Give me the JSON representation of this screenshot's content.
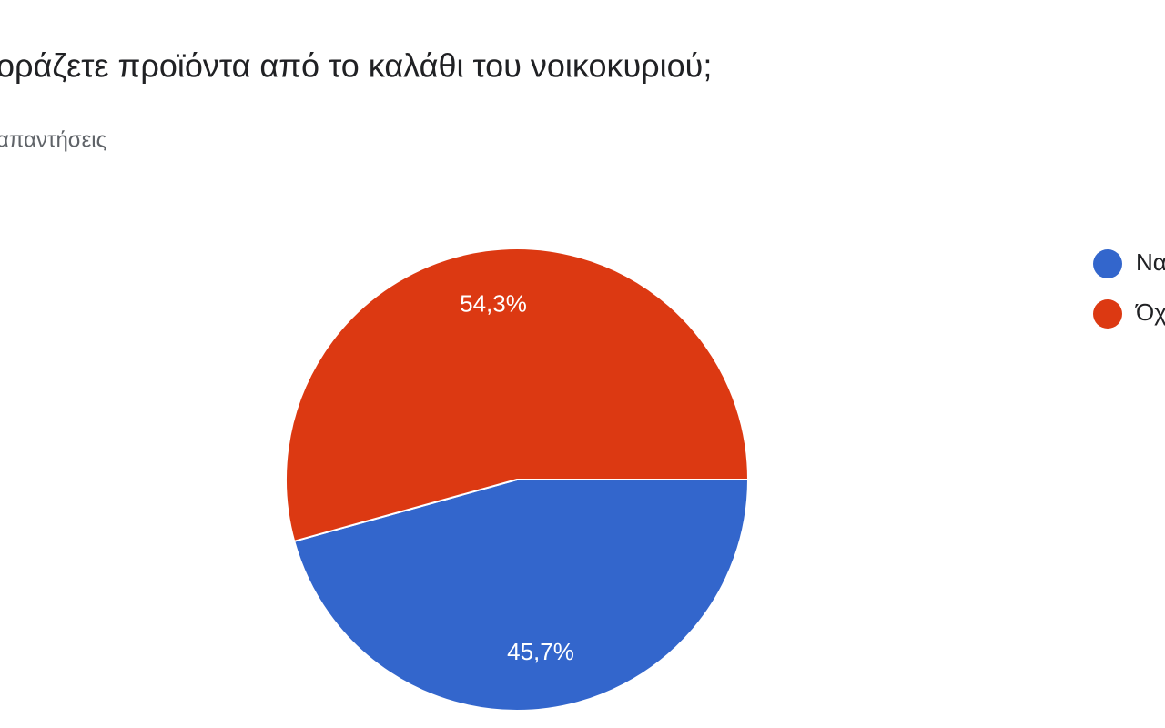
{
  "chart_data": {
    "type": "pie",
    "title": "οράζετε προϊόντα από το καλάθι του νοικοκυριού;",
    "subtitle": "απαντήσεις",
    "categories": [
      "Να",
      "Όχ"
    ],
    "values": [
      45.7,
      54.3
    ],
    "value_labels": [
      "45,7%",
      "54,3%"
    ],
    "colors": [
      "#3366cc",
      "#dc3912"
    ],
    "legend": "right"
  }
}
